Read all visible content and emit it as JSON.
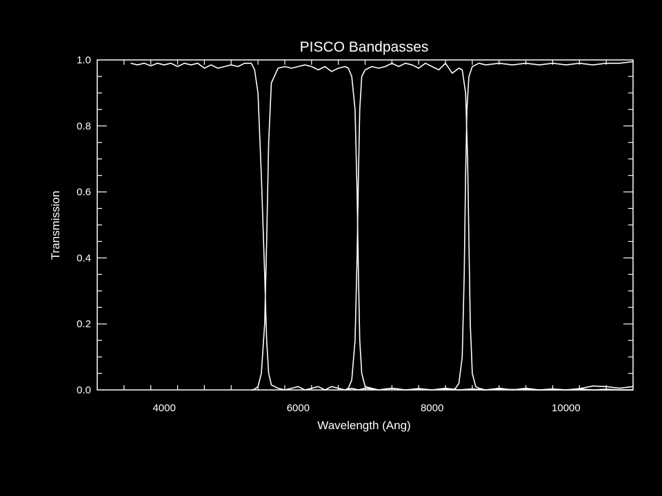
{
  "chart_data": {
    "type": "line",
    "title": "PISCO Bandpasses",
    "xlabel": "Wavelength (Ang)",
    "ylabel": "Transmission",
    "xlim": [
      3000,
      11000
    ],
    "ylim": [
      0.0,
      1.0
    ],
    "grid": false,
    "background": "#000000",
    "foreground": "#ffffff",
    "x_ticks": [
      {
        "value": 4000,
        "label": "4000"
      },
      {
        "value": 6000,
        "label": "6000"
      },
      {
        "value": 8000,
        "label": "8000"
      },
      {
        "value": 10000,
        "label": "10000"
      }
    ],
    "y_ticks": [
      {
        "value": 0.0,
        "label": "0.0"
      },
      {
        "value": 0.2,
        "label": "0.2"
      },
      {
        "value": 0.4,
        "label": "0.4"
      },
      {
        "value": 0.6,
        "label": "0.6"
      },
      {
        "value": 0.8,
        "label": "0.8"
      },
      {
        "value": 1.0,
        "label": "1.0"
      }
    ],
    "series": [
      {
        "color": "#ffffff",
        "x": [
          3500,
          3600,
          3700,
          3800,
          3900,
          4000,
          4100,
          4200,
          4300,
          4400,
          4500,
          4600,
          4700,
          4800,
          4900,
          5000,
          5100,
          5200,
          5300,
          5350,
          5400,
          5450,
          5500,
          5530,
          5560,
          5600,
          5650,
          5700,
          5800,
          5900,
          6000,
          6100,
          6200,
          6300,
          6400,
          6500,
          6600,
          6700,
          6800,
          6900,
          7000,
          7200,
          7400,
          7600,
          7800,
          8000,
          8200,
          8400,
          8600,
          8800,
          9000,
          9200,
          9400,
          9600,
          9800,
          10000,
          10200,
          10400,
          10600,
          10800,
          11000
        ],
        "y": [
          0.99,
          0.985,
          0.99,
          0.982,
          0.99,
          0.985,
          0.99,
          0.98,
          0.99,
          0.985,
          0.99,
          0.975,
          0.985,
          0.975,
          0.98,
          0.985,
          0.98,
          0.99,
          0.99,
          0.97,
          0.9,
          0.65,
          0.35,
          0.15,
          0.05,
          0.015,
          0.01,
          0.005,
          0.0,
          0.005,
          0.01,
          0.0,
          0.005,
          0.01,
          0.0,
          0.01,
          0.005,
          0.0,
          0.005,
          0.0,
          0.005,
          0.0,
          0.005,
          0.0,
          0.002,
          0.0,
          0.005,
          0.0,
          0.003,
          0.0,
          0.005,
          0.0,
          0.005,
          0.0,
          0.003,
          0.0,
          0.004,
          0.012,
          0.01,
          0.005,
          0.01
        ]
      },
      {
        "color": "#ffffff",
        "x": [
          5300,
          5350,
          5400,
          5450,
          5500,
          5530,
          5560,
          5600,
          5700,
          5800,
          5900,
          6000,
          6100,
          6200,
          6300,
          6400,
          6500,
          6600,
          6700,
          6750,
          6800,
          6850,
          6880,
          6900,
          6920,
          6950,
          7000,
          7100,
          7200,
          7400,
          7600,
          7800,
          8000,
          8200,
          8400,
          8600,
          8800,
          9000,
          9500,
          10000,
          10500,
          11000
        ],
        "y": [
          0.0,
          0.002,
          0.01,
          0.05,
          0.2,
          0.45,
          0.75,
          0.93,
          0.975,
          0.98,
          0.975,
          0.98,
          0.985,
          0.98,
          0.97,
          0.98,
          0.965,
          0.975,
          0.98,
          0.975,
          0.95,
          0.85,
          0.6,
          0.35,
          0.15,
          0.05,
          0.01,
          0.005,
          0.0,
          0.005,
          0.0,
          0.004,
          0.0,
          0.003,
          0.0,
          0.002,
          0.0,
          0.002,
          0.0,
          0.0,
          0.0,
          0.0
        ]
      },
      {
        "color": "#ffffff",
        "x": [
          6700,
          6750,
          6800,
          6850,
          6880,
          6900,
          6920,
          6950,
          7000,
          7050,
          7100,
          7200,
          7300,
          7400,
          7500,
          7600,
          7700,
          7800,
          7900,
          8000,
          8100,
          8200,
          8300,
          8400,
          8450,
          8500,
          8530,
          8550,
          8570,
          8600,
          8650,
          8700,
          8800,
          9000,
          9200,
          9400,
          9600,
          9800,
          10000,
          10200,
          10400,
          10600,
          10800,
          11000
        ],
        "y": [
          0.0,
          0.005,
          0.03,
          0.15,
          0.4,
          0.65,
          0.85,
          0.95,
          0.97,
          0.975,
          0.98,
          0.975,
          0.98,
          0.99,
          0.98,
          0.99,
          0.985,
          0.975,
          0.99,
          0.98,
          0.97,
          0.99,
          0.96,
          0.975,
          0.97,
          0.9,
          0.7,
          0.45,
          0.2,
          0.05,
          0.01,
          0.005,
          0.0,
          0.004,
          0.0,
          0.003,
          0.0,
          0.002,
          0.0,
          0.003,
          0.0,
          0.002,
          0.0,
          0.0
        ]
      },
      {
        "color": "#ffffff",
        "x": [
          8300,
          8350,
          8400,
          8450,
          8480,
          8500,
          8520,
          8550,
          8600,
          8650,
          8700,
          8800,
          9000,
          9200,
          9400,
          9600,
          9800,
          10000,
          10200,
          10400,
          10600,
          10800,
          11000
        ],
        "y": [
          0.0,
          0.005,
          0.02,
          0.1,
          0.35,
          0.65,
          0.85,
          0.95,
          0.98,
          0.985,
          0.99,
          0.985,
          0.99,
          0.985,
          0.99,
          0.985,
          0.99,
          0.985,
          0.99,
          0.985,
          0.99,
          0.99,
          0.995
        ]
      }
    ]
  }
}
